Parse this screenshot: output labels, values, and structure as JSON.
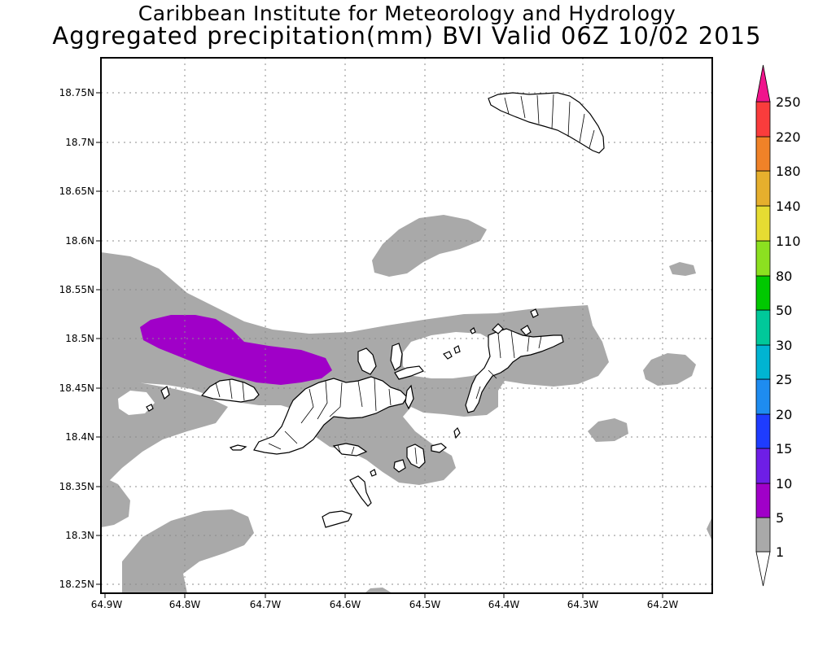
{
  "title": {
    "line1": "Caribbean Institute for Meteorology and Hydrology",
    "line2": "Aggregated precipitation(mm) BVI Valid 06Z 10/02 2015"
  },
  "map": {
    "lat_ticks": [
      "18.75N",
      "18.7N",
      "18.65N",
      "18.6N",
      "18.55N",
      "18.5N",
      "18.45N",
      "18.4N",
      "18.35N",
      "18.3N",
      "18.25N"
    ],
    "lon_ticks": [
      "64.9W",
      "64.8W",
      "64.7W",
      "64.6W",
      "64.5W",
      "64.4W",
      "64.3W",
      "64.2W"
    ],
    "lat_range": [
      18.24,
      18.86
    ],
    "lon_range": [
      -64.9,
      -64.12
    ],
    "grid": true
  },
  "legend": {
    "unit": "mm",
    "levels": [
      "1",
      "5",
      "10",
      "15",
      "20",
      "25",
      "30",
      "50",
      "80",
      "110",
      "140",
      "180",
      "220",
      "250"
    ],
    "colors": [
      "#ffffff",
      "#a9a9a9",
      "#a000c8",
      "#6e1ee6",
      "#1e3cff",
      "#1e8cf0",
      "#00b4d2",
      "#00c89a",
      "#00c800",
      "#8ce020",
      "#e6dc32",
      "#e6af2d",
      "#f08228",
      "#fa3c3c",
      "#f0148c"
    ]
  }
}
